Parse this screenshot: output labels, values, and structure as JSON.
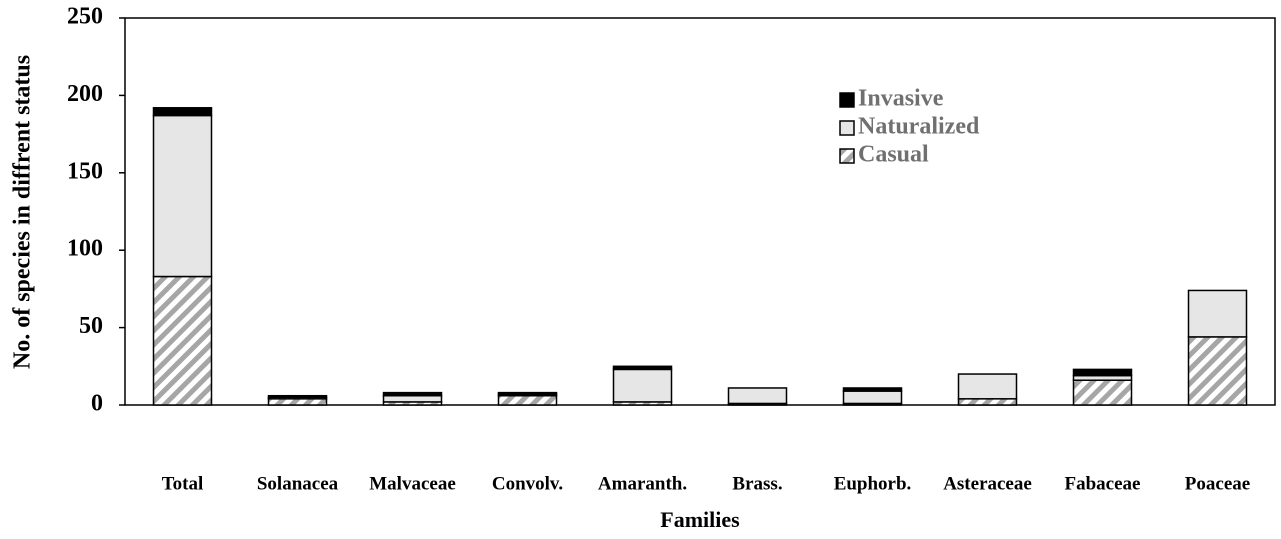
{
  "chart_data": {
    "type": "stacked_bar",
    "x_label": "Families",
    "y_label": "No. of species in diffrent status",
    "categories": [
      "Total",
      "Solanacea",
      "Malvaceae",
      "Convolv.",
      "Amaranth.",
      "Brass.",
      "Euphorb.",
      "Asteraceae",
      "Fabaceae",
      "Poaceae"
    ],
    "series": [
      {
        "name": "Casual",
        "color": "#a6a6a6",
        "hatch": true,
        "values": [
          83,
          4,
          2,
          6,
          2,
          1,
          1,
          4,
          16,
          44
        ]
      },
      {
        "name": "Naturalized",
        "color": "#e6e6e6",
        "values": [
          104,
          1,
          4,
          1,
          21,
          10,
          8,
          16,
          3,
          30
        ]
      },
      {
        "name": "Invasive",
        "color": "#000000",
        "values": [
          5,
          1,
          2,
          1,
          2,
          0,
          2,
          0,
          4,
          0
        ]
      }
    ],
    "ylim": [
      0,
      250
    ],
    "yticks": [
      0,
      50,
      100,
      150,
      200,
      250
    ],
    "legend": "upper right"
  }
}
